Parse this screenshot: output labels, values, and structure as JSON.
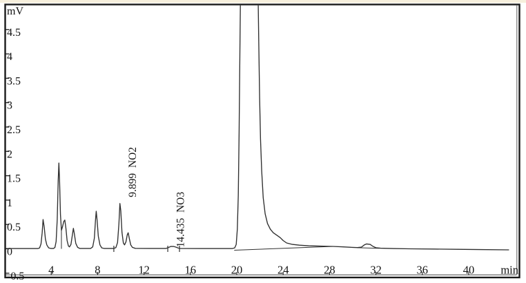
{
  "chart_data": {
    "type": "line",
    "title": "",
    "subtitle": "",
    "xlabel": "min",
    "ylabel": "mV",
    "grid": false,
    "legend": "none",
    "xlim": [
      0,
      44.4
    ],
    "ylim": [
      -0.588,
      5.0
    ],
    "x_ticks": [
      4,
      8,
      12,
      16,
      20,
      24,
      28,
      32,
      36,
      40
    ],
    "y_ticks": [
      {
        "v": 4.5,
        "label": "4.5"
      },
      {
        "v": 4.0,
        "label": "4"
      },
      {
        "v": 3.5,
        "label": "3.5"
      },
      {
        "v": 3.0,
        "label": "3"
      },
      {
        "v": 2.5,
        "label": "2.5"
      },
      {
        "v": 2.0,
        "label": "2"
      },
      {
        "v": 1.5,
        "label": "1.5"
      },
      {
        "v": 1.0,
        "label": "1"
      },
      {
        "v": 0.5,
        "label": "0.5"
      },
      {
        "v": 0.0,
        "label": "0"
      },
      {
        "v": -0.5,
        "label": "-0.5"
      }
    ],
    "peaks_summary": [
      {
        "t": 3.3,
        "height_mV": 0.6
      },
      {
        "t": 4.66,
        "height_mV": 1.76
      },
      {
        "t": 5.17,
        "height_mV": 0.59
      },
      {
        "t": 5.91,
        "height_mV": 0.42
      },
      {
        "t": 7.88,
        "height_mV": 0.77
      },
      {
        "t": 9.92,
        "height_mV": 0.93,
        "annotation": "9.899 NO2"
      },
      {
        "t": 10.64,
        "height_mV": 0.33
      },
      {
        "t": 14.5,
        "height_mV": 0.05,
        "annotation": "14.435 NO3"
      },
      {
        "t": 21.0,
        "height_mV": "off-scale (clipped above 5.0)"
      },
      {
        "t": 31.2,
        "height_mV": 0.1
      }
    ],
    "peak_labels": [
      {
        "retention_time": "9.899",
        "compound": "NO2",
        "text_x_t": 11.31,
        "text_bottom_v": 1.06
      },
      {
        "retention_time": "14.435",
        "compound": "NO3",
        "text_x_t": 15.45,
        "text_bottom_v": 0.03
      }
    ],
    "integration_tick_times": [
      9.4,
      14.05,
      15.06
    ],
    "drop_lines": [
      {
        "t": 4.88,
        "v_top": 0.38
      }
    ],
    "baseline_segments": [
      [
        [
          19.78,
          -0.028
        ],
        [
          28.3,
          0.05
        ]
      ],
      [
        [
          30.4,
          0.022
        ],
        [
          32.3,
          0.01
        ]
      ]
    ],
    "trace": [
      [
        0,
        0.005
      ],
      [
        2.0,
        0.005
      ],
      [
        2.85,
        0.005
      ],
      [
        3.0,
        0.02
      ],
      [
        3.12,
        0.1
      ],
      [
        3.22,
        0.33
      ],
      [
        3.3,
        0.6
      ],
      [
        3.4,
        0.44
      ],
      [
        3.5,
        0.2
      ],
      [
        3.62,
        0.08
      ],
      [
        3.78,
        0.02
      ],
      [
        3.95,
        0.008
      ],
      [
        4.2,
        0.008
      ],
      [
        4.32,
        0.03
      ],
      [
        4.42,
        0.15
      ],
      [
        4.52,
        0.6
      ],
      [
        4.6,
        1.4
      ],
      [
        4.66,
        1.76
      ],
      [
        4.72,
        1.4
      ],
      [
        4.8,
        0.7
      ],
      [
        4.88,
        0.38
      ],
      [
        4.98,
        0.46
      ],
      [
        5.08,
        0.56
      ],
      [
        5.17,
        0.59
      ],
      [
        5.27,
        0.42
      ],
      [
        5.37,
        0.17
      ],
      [
        5.48,
        0.06
      ],
      [
        5.58,
        0.04
      ],
      [
        5.7,
        0.09
      ],
      [
        5.82,
        0.28
      ],
      [
        5.91,
        0.42
      ],
      [
        6.0,
        0.3
      ],
      [
        6.12,
        0.11
      ],
      [
        6.28,
        0.03
      ],
      [
        6.45,
        0.008
      ],
      [
        7.4,
        0.008
      ],
      [
        7.58,
        0.04
      ],
      [
        7.72,
        0.22
      ],
      [
        7.82,
        0.6
      ],
      [
        7.88,
        0.77
      ],
      [
        7.96,
        0.58
      ],
      [
        8.06,
        0.26
      ],
      [
        8.2,
        0.08
      ],
      [
        8.36,
        0.02
      ],
      [
        8.55,
        0.008
      ],
      [
        9.4,
        0.008
      ],
      [
        9.58,
        0.025
      ],
      [
        9.72,
        0.13
      ],
      [
        9.84,
        0.52
      ],
      [
        9.92,
        0.93
      ],
      [
        10.0,
        0.78
      ],
      [
        10.1,
        0.34
      ],
      [
        10.22,
        0.12
      ],
      [
        10.32,
        0.08
      ],
      [
        10.44,
        0.14
      ],
      [
        10.56,
        0.29
      ],
      [
        10.64,
        0.33
      ],
      [
        10.74,
        0.21
      ],
      [
        10.86,
        0.08
      ],
      [
        11.0,
        0.03
      ],
      [
        11.25,
        0.01
      ],
      [
        12.5,
        0.008
      ],
      [
        13.9,
        0.008
      ],
      [
        14.1,
        0.025
      ],
      [
        14.3,
        0.048
      ],
      [
        14.55,
        0.05
      ],
      [
        14.75,
        0.035
      ],
      [
        14.95,
        0.015
      ],
      [
        15.1,
        0.008
      ],
      [
        17.0,
        0.006
      ],
      [
        19.6,
        0.006
      ],
      [
        19.82,
        0.02
      ],
      [
        19.95,
        0.09
      ],
      [
        20.05,
        0.4
      ],
      [
        20.13,
        1.1
      ],
      [
        20.2,
        2.4
      ],
      [
        20.27,
        4.0
      ],
      [
        20.33,
        5.4
      ],
      [
        20.6,
        7.0
      ],
      [
        21.55,
        7.0
      ],
      [
        21.83,
        5.4
      ],
      [
        21.9,
        4.2
      ],
      [
        21.97,
        3.1
      ],
      [
        22.05,
        2.25
      ],
      [
        22.15,
        1.6
      ],
      [
        22.28,
        1.05
      ],
      [
        22.45,
        0.72
      ],
      [
        22.65,
        0.52
      ],
      [
        22.9,
        0.4
      ],
      [
        23.15,
        0.33
      ],
      [
        23.45,
        0.28
      ],
      [
        23.75,
        0.23
      ],
      [
        24.0,
        0.17
      ],
      [
        24.3,
        0.12
      ],
      [
        24.8,
        0.09
      ],
      [
        25.4,
        0.075
      ],
      [
        26.2,
        0.062
      ],
      [
        27.2,
        0.055
      ],
      [
        28.3,
        0.05
      ],
      [
        29.2,
        0.04
      ],
      [
        30.0,
        0.03
      ],
      [
        30.4,
        0.025
      ],
      [
        30.75,
        0.035
      ],
      [
        31.0,
        0.08
      ],
      [
        31.2,
        0.1
      ],
      [
        31.5,
        0.09
      ],
      [
        31.75,
        0.05
      ],
      [
        32.0,
        0.022
      ],
      [
        32.4,
        0.012
      ],
      [
        33.5,
        0.006
      ],
      [
        35.0,
        0.0
      ],
      [
        37.0,
        -0.004
      ],
      [
        39.0,
        -0.01
      ],
      [
        41.0,
        -0.016
      ],
      [
        43.45,
        -0.022
      ]
    ]
  },
  "colors": {
    "trace": "#2e2e2e",
    "frame": "#1a1a1a",
    "inner_line": "#5a5a5a",
    "text": "#141414",
    "background": "#ffffff",
    "scan_edge": "#f6efdc"
  }
}
